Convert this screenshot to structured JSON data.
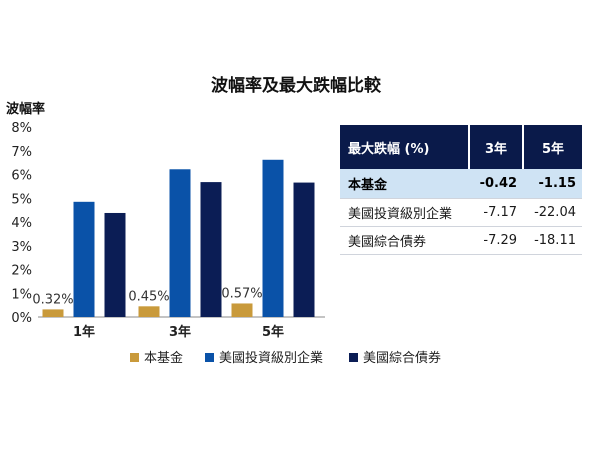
{
  "chart_data": [
    {
      "type": "bar",
      "title": "波幅率及最大跌幅比較",
      "ylabel": "波幅率",
      "xlabel": "",
      "ylim": [
        0,
        8
      ],
      "yticks": [
        "0%",
        "1%",
        "2%",
        "3%",
        "4%",
        "5%",
        "6%",
        "7%",
        "8%"
      ],
      "categories": [
        "1年",
        "3年",
        "5年"
      ],
      "legend_position": "bottom",
      "grid": false,
      "series": [
        {
          "name": "本基金",
          "values": [
            0.32,
            0.45,
            0.57
          ],
          "labels": [
            "0.32%",
            "0.45%",
            "0.57%"
          ],
          "color": "#c99a3b"
        },
        {
          "name": "美國投資級別企業",
          "values": [
            4.85,
            6.22,
            6.62
          ],
          "color": "#0a52a8"
        },
        {
          "name": "美國綜合債券",
          "values": [
            4.38,
            5.68,
            5.66
          ],
          "color": "#0b1d55"
        }
      ]
    },
    {
      "type": "table",
      "columns": [
        "最大跌幅 (%)",
        "3年",
        "5年"
      ],
      "rows": [
        {
          "name": "本基金",
          "values": [
            "-0.42",
            "-1.15"
          ],
          "highlight": true
        },
        {
          "name": "美國投資級別企業",
          "values": [
            "-7.17",
            "-22.04"
          ]
        },
        {
          "name": "美國綜合債券",
          "values": [
            "-7.29",
            "-18.11"
          ]
        }
      ],
      "header_color": "#0a1a4a",
      "highlight_color": "#cfe3f4"
    }
  ]
}
